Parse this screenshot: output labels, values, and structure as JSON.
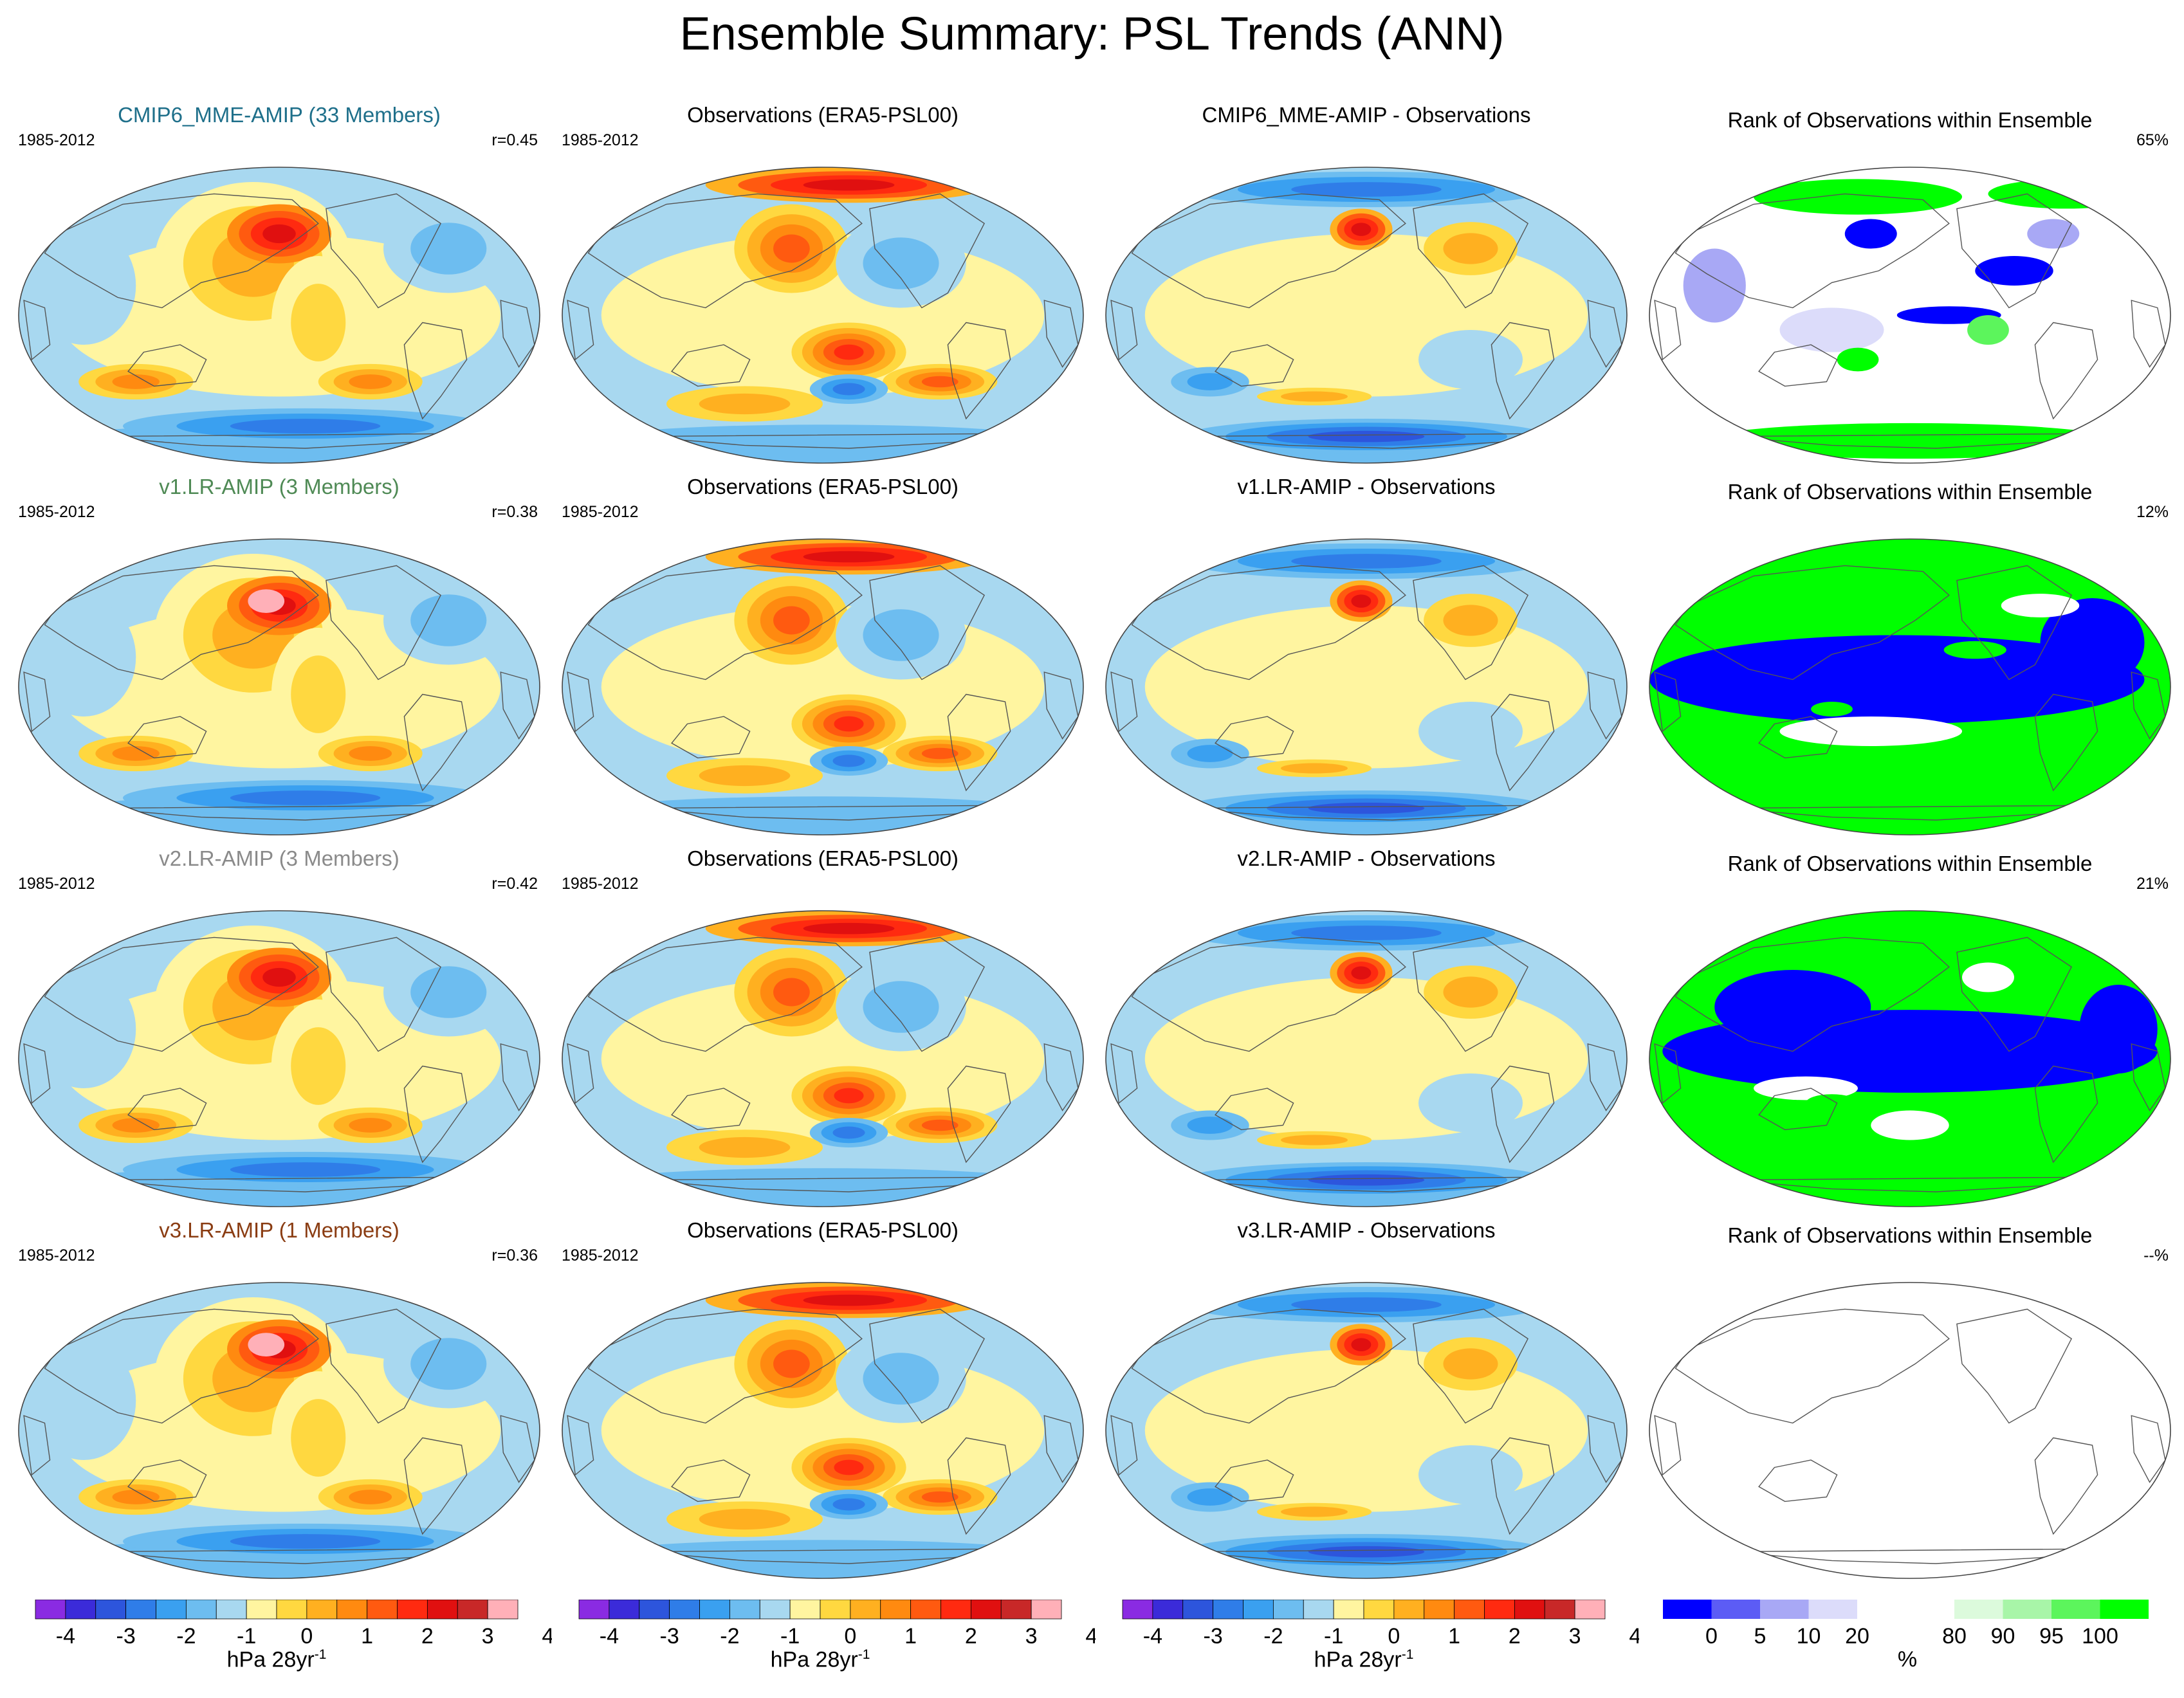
{
  "title": "Ensemble Summary: PSL Trends (ANN)",
  "rows": [
    {
      "model": "CMIP6_MME-AMIP (33 Members)",
      "model_color": "#1e6f8a",
      "model_short": "CMIP6_MME-AMIP",
      "period": "1985-2012",
      "correlation": "r=0.45",
      "observations": "Observations (ERA5-PSL00)",
      "difference": "CMIP6_MME-AMIP - Observations",
      "rank_title": "Rank of Observations within Ensemble",
      "rank_pct": "65%",
      "rank_style": "mixed"
    },
    {
      "model": "v1.LR-AMIP (3 Members)",
      "model_color": "#4f8a55",
      "model_short": "v1.LR-AMIP",
      "period": "1985-2012",
      "correlation": "r=0.38",
      "observations": "Observations (ERA5-PSL00)",
      "difference": "v1.LR-AMIP - Observations",
      "rank_title": "Rank of Observations within Ensemble",
      "rank_pct": "12%",
      "rank_style": "blocky"
    },
    {
      "model": "v2.LR-AMIP (3 Members)",
      "model_color": "#8a8a8a",
      "model_short": "v2.LR-AMIP",
      "period": "1985-2012",
      "correlation": "r=0.42",
      "observations": "Observations (ERA5-PSL00)",
      "difference": "v2.LR-AMIP - Observations",
      "rank_title": "Rank of Observations within Ensemble",
      "rank_pct": "21%",
      "rank_style": "blocky"
    },
    {
      "model": "v3.LR-AMIP (1 Members)",
      "model_color": "#8a3c12",
      "model_short": "v3.LR-AMIP",
      "period": "1985-2012",
      "correlation": "r=0.36",
      "observations": "Observations (ERA5-PSL00)",
      "difference": "v3.LR-AMIP - Observations",
      "rank_title": "Rank of Observations within Ensemble",
      "rank_pct": "--%",
      "rank_style": "empty"
    }
  ],
  "trend_colorbar": {
    "colors": [
      "#8a2be2",
      "#3b2bd9",
      "#2d55dc",
      "#2f7de8",
      "#3aa0f0",
      "#6dbdf0",
      "#a8d8f0",
      "#fff5a0",
      "#ffd840",
      "#ffb020",
      "#ff8a10",
      "#ff5a10",
      "#ff2a10",
      "#e01010",
      "#c82828",
      "#ffb0b8"
    ],
    "tick_labels": [
      "-4",
      "-3",
      "-2",
      "-1",
      "0",
      "1",
      "2",
      "3",
      "4"
    ],
    "unit": "hPa 28yr",
    "unit_exp": "-1"
  },
  "rank_colorbar": {
    "colors": [
      "#0000ff",
      "#5c5cf5",
      "#a8a8f5",
      "#dcdcfa",
      "#ffffff",
      "#ffffff",
      "#dcfadc",
      "#a8f5a8",
      "#5cf55c",
      "#00ff00"
    ],
    "tick_labels": [
      "0",
      "5",
      "10",
      "20",
      "80",
      "90",
      "95",
      "100"
    ],
    "unit": "%"
  }
}
